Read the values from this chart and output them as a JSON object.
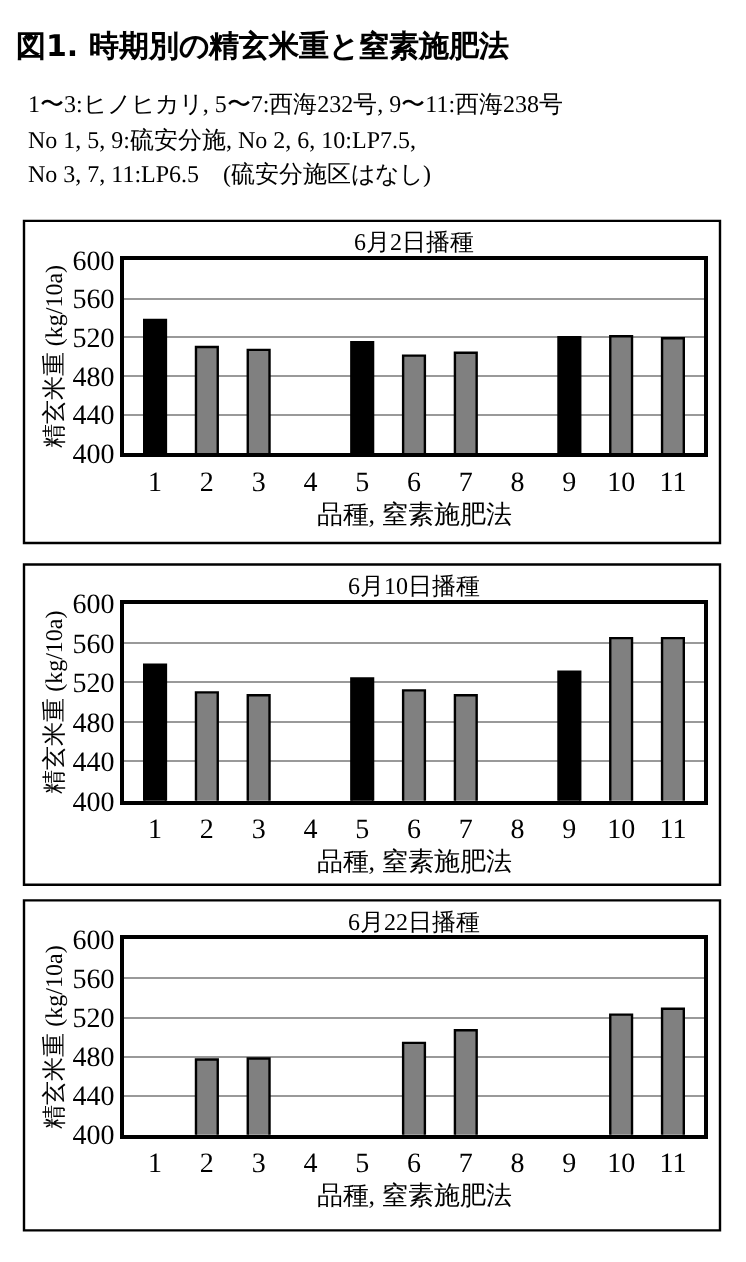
{
  "chart_data": [
    {
      "type": "bar",
      "title": "6月2日播種",
      "xlabel": "品種, 窒素施肥法",
      "ylabel": "精玄米重 (kg/10a)",
      "annotations": [
        "図1. 時期別の精玄米重と窒素施肥法",
        "1〜3:ヒノヒカリ, 5〜7:西海232号, 9〜11:西海238号",
        "No 1, 5, 9:硫安分施, No 2, 6, 10:LP7.5,",
        "No 3, 7, 11:LP6.5　(硫安分施区はなし)"
      ],
      "categories": [
        "1",
        "2",
        "3",
        "4",
        "5",
        "6",
        "7",
        "8",
        "9",
        "10",
        "11"
      ],
      "values": [
        538,
        510,
        507,
        null,
        515,
        501,
        504,
        null,
        520,
        521,
        519
      ],
      "colors": [
        "#000000",
        "#808080",
        "#808080",
        "#808080",
        "#000000",
        "#808080",
        "#808080",
        "#808080",
        "#000000",
        "#808080",
        "#808080"
      ],
      "ylim": [
        400,
        600
      ],
      "yticks": [
        400,
        440,
        480,
        520,
        560,
        600
      ],
      "grid": "y"
    },
    {
      "type": "bar",
      "title": "6月10日播種",
      "xlabel": "品種, 窒素施肥法",
      "ylabel": "精玄米重 (kg/10a)",
      "categories": [
        "1",
        "2",
        "3",
        "4",
        "5",
        "6",
        "7",
        "8",
        "9",
        "10",
        "11"
      ],
      "values": [
        538,
        510,
        507,
        null,
        524,
        512,
        507,
        null,
        531,
        565,
        565
      ],
      "colors": [
        "#000000",
        "#808080",
        "#808080",
        "#808080",
        "#000000",
        "#808080",
        "#808080",
        "#808080",
        "#000000",
        "#808080",
        "#808080"
      ],
      "ylim": [
        400,
        600
      ],
      "yticks": [
        400,
        440,
        480,
        520,
        560,
        600
      ],
      "grid": "y"
    },
    {
      "type": "bar",
      "title": "6月22日播種",
      "xlabel": "品種, 窒素施肥法",
      "ylabel": "精玄米重 (kg/10a)",
      "categories": [
        "1",
        "2",
        "3",
        "4",
        "5",
        "6",
        "7",
        "8",
        "9",
        "10",
        "11"
      ],
      "values": [
        null,
        477,
        478,
        null,
        null,
        494,
        507,
        null,
        null,
        523,
        529
      ],
      "colors": [
        "#808080",
        "#808080",
        "#808080",
        "#808080",
        "#808080",
        "#808080",
        "#808080",
        "#808080",
        "#808080",
        "#808080",
        "#808080"
      ],
      "ylim": [
        400,
        600
      ],
      "yticks": [
        400,
        440,
        480,
        520,
        560,
        600
      ],
      "grid": "y"
    }
  ]
}
